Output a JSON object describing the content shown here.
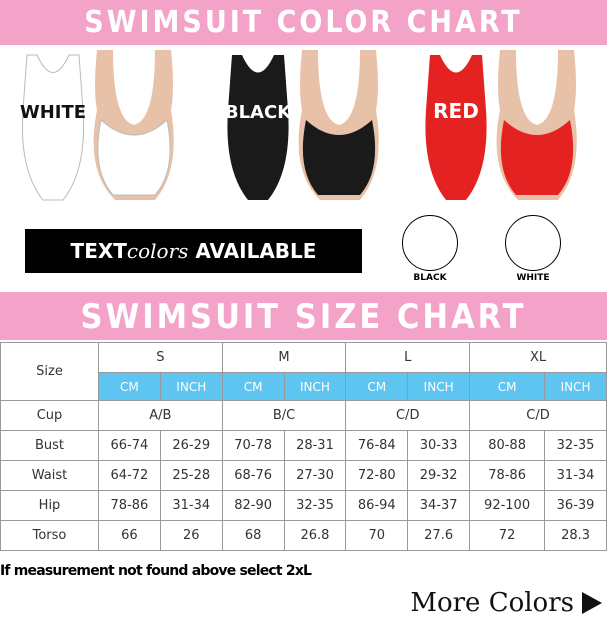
{
  "color_chart": {
    "title": "SWIMSUIT COLOR CHART",
    "swimsuits": [
      {
        "label": "WHITE",
        "color": "#ffffff",
        "text_color": "#111111"
      },
      {
        "label": "BLACK",
        "color": "#1a1a1a",
        "text_color": "#ffffff"
      },
      {
        "label": "RED",
        "color": "#e52222",
        "text_color": "#ffffff"
      }
    ],
    "text_colors": {
      "prefix": "TEXT",
      "script": "colors",
      "suffix": "AVAILABLE"
    },
    "swatches": [
      {
        "label": "BLACK",
        "color": "#000000"
      },
      {
        "label": "WHITE",
        "color": "#ffffff"
      }
    ]
  },
  "size_chart": {
    "title": "SWIMSUIT SIZE CHART",
    "size_label": "Size",
    "sizes": [
      "S",
      "M",
      "L",
      "XL"
    ],
    "units": [
      "CM",
      "INCH"
    ],
    "cup": {
      "label": "Cup",
      "values": [
        "A/B",
        "B/C",
        "C/D",
        "C/D"
      ]
    },
    "rows": [
      {
        "label": "Bust",
        "values": [
          "66-74",
          "26-29",
          "70-78",
          "28-31",
          "76-84",
          "30-33",
          "80-88",
          "32-35"
        ]
      },
      {
        "label": "Waist",
        "values": [
          "64-72",
          "25-28",
          "68-76",
          "27-30",
          "72-80",
          "29-32",
          "78-86",
          "31-34"
        ]
      },
      {
        "label": "Hip",
        "values": [
          "78-86",
          "31-34",
          "82-90",
          "32-35",
          "86-94",
          "34-37",
          "92-100",
          "36-39"
        ]
      },
      {
        "label": "Torso",
        "values": [
          "66",
          "26",
          "68",
          "26.8",
          "70",
          "27.6",
          "72",
          "28.3"
        ]
      }
    ]
  },
  "note": "If measurement not found above select 2xL",
  "more_colors": "More Colors"
}
